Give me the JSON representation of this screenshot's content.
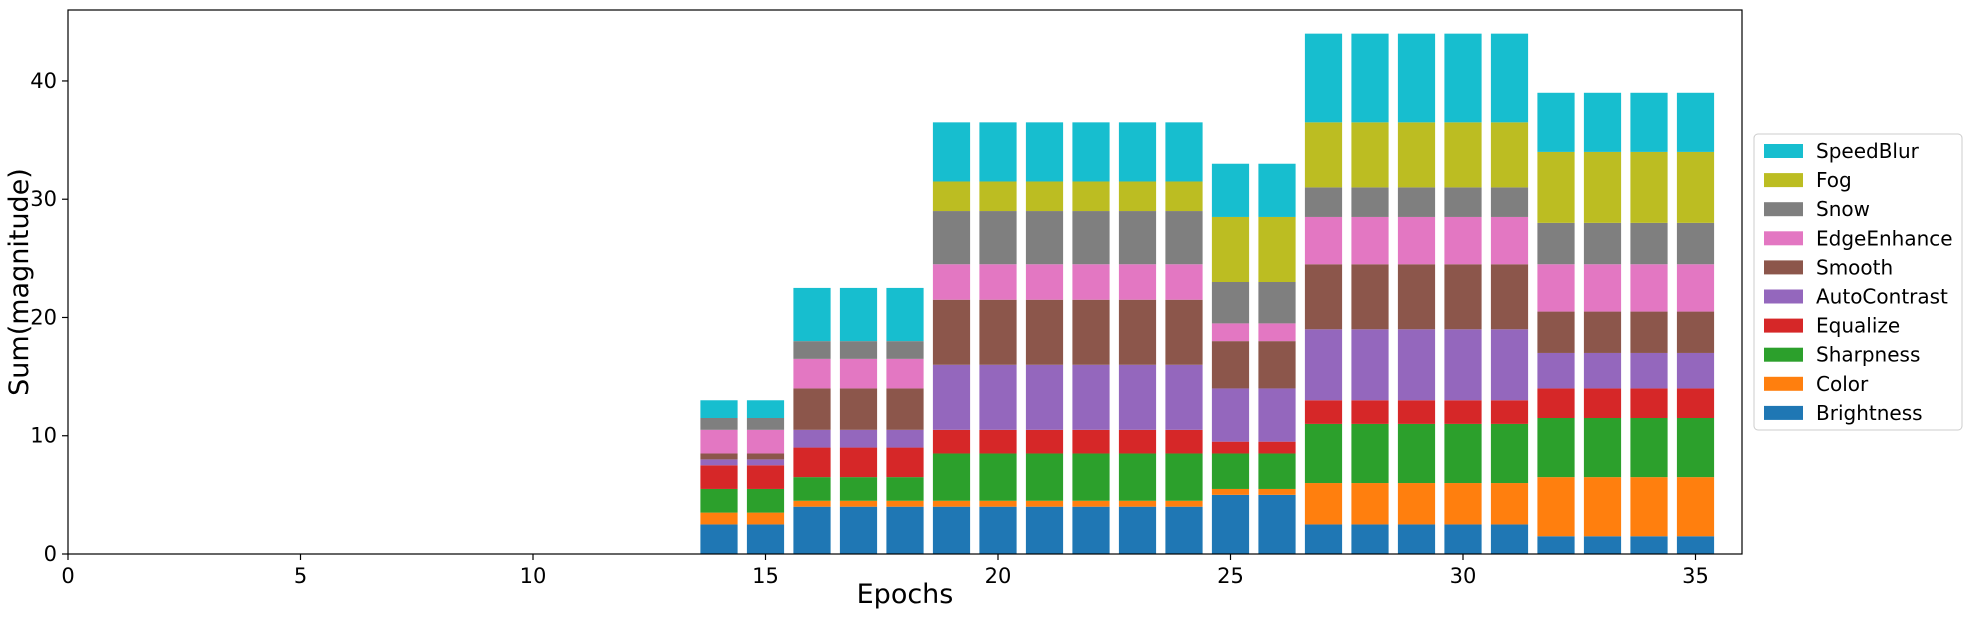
{
  "chart_data": {
    "type": "bar",
    "stacked": true,
    "xlabel": "Epochs",
    "ylabel": "Sum(magnitude)",
    "xlim": [
      0,
      36
    ],
    "ylim": [
      0,
      46
    ],
    "xticks": [
      0,
      5,
      10,
      15,
      20,
      25,
      30,
      35
    ],
    "yticks": [
      0,
      10,
      20,
      30,
      40
    ],
    "grid": false,
    "legend_position": "right",
    "x": [
      14,
      15,
      16,
      17,
      18,
      19,
      20,
      21,
      22,
      23,
      24,
      25,
      26,
      27,
      28,
      29,
      30,
      31,
      32,
      33,
      34,
      35
    ],
    "series": [
      {
        "name": "Brightness",
        "color": "#1f77b4",
        "values": [
          2.5,
          2.5,
          4,
          4,
          4,
          4,
          4,
          4,
          4,
          4,
          4,
          5,
          5,
          2.5,
          2.5,
          2.5,
          2.5,
          2.5,
          1.5,
          1.5,
          1.5,
          1.5
        ]
      },
      {
        "name": "Color",
        "color": "#ff7f0e",
        "values": [
          1,
          1,
          0.5,
          0.5,
          0.5,
          0.5,
          0.5,
          0.5,
          0.5,
          0.5,
          0.5,
          0.5,
          0.5,
          3.5,
          3.5,
          3.5,
          3.5,
          3.5,
          5,
          5,
          5,
          5
        ]
      },
      {
        "name": "Sharpness",
        "color": "#2ca02c",
        "values": [
          2,
          2,
          2,
          2,
          2,
          4,
          4,
          4,
          4,
          4,
          4,
          3,
          3,
          5,
          5,
          5,
          5,
          5,
          5,
          5,
          5,
          5
        ]
      },
      {
        "name": "Equalize",
        "color": "#d62728",
        "values": [
          2,
          2,
          2.5,
          2.5,
          2.5,
          2,
          2,
          2,
          2,
          2,
          2,
          1,
          1,
          2,
          2,
          2,
          2,
          2,
          2.5,
          2.5,
          2.5,
          2.5
        ]
      },
      {
        "name": "AutoContrast",
        "color": "#9467bd",
        "values": [
          0.5,
          0.5,
          1.5,
          1.5,
          1.5,
          5.5,
          5.5,
          5.5,
          5.5,
          5.5,
          5.5,
          4.5,
          4.5,
          6,
          6,
          6,
          6,
          6,
          3,
          3,
          3,
          3
        ]
      },
      {
        "name": "Smooth",
        "color": "#8c564b",
        "values": [
          0.5,
          0.5,
          3.5,
          3.5,
          3.5,
          5.5,
          5.5,
          5.5,
          5.5,
          5.5,
          5.5,
          4,
          4,
          5.5,
          5.5,
          5.5,
          5.5,
          5.5,
          3.5,
          3.5,
          3.5,
          3.5
        ]
      },
      {
        "name": "EdgeEnhance",
        "color": "#e377c2",
        "values": [
          2,
          2,
          2.5,
          2.5,
          2.5,
          3,
          3,
          3,
          3,
          3,
          3,
          1.5,
          1.5,
          4,
          4,
          4,
          4,
          4,
          4,
          4,
          4,
          4
        ]
      },
      {
        "name": "Snow",
        "color": "#7f7f7f",
        "values": [
          1,
          1,
          1.5,
          1.5,
          1.5,
          4.5,
          4.5,
          4.5,
          4.5,
          4.5,
          4.5,
          3.5,
          3.5,
          2.5,
          2.5,
          2.5,
          2.5,
          2.5,
          3.5,
          3.5,
          3.5,
          3.5
        ]
      },
      {
        "name": "Fog",
        "color": "#bcbd22",
        "values": [
          0,
          0,
          0,
          0,
          0,
          2.5,
          2.5,
          2.5,
          2.5,
          2.5,
          2.5,
          5.5,
          5.5,
          5.5,
          5.5,
          5.5,
          5.5,
          5.5,
          6,
          6,
          6,
          6
        ]
      },
      {
        "name": "SpeedBlur",
        "color": "#17becf",
        "values": [
          1.5,
          1.5,
          4.5,
          4.5,
          4.5,
          5,
          5,
          5,
          5,
          5,
          5,
          4.5,
          4.5,
          7.5,
          7.5,
          7.5,
          7.5,
          7.5,
          5,
          5,
          5,
          5
        ]
      }
    ]
  }
}
